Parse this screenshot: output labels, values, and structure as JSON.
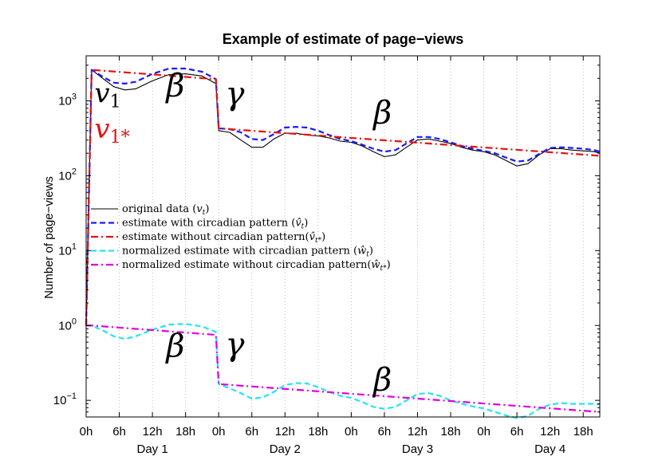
{
  "chart_data": {
    "type": "line",
    "title": "Example of estimate of page−views",
    "ylabel": "Number of page−views",
    "xlabel": "",
    "yscale": "log",
    "ylim": [
      0.06,
      4000
    ],
    "xlim": [
      0,
      93
    ],
    "x_ticks": [
      {
        "x": 0,
        "label": "0h"
      },
      {
        "x": 6,
        "label": "6h"
      },
      {
        "x": 12,
        "label": "12h"
      },
      {
        "x": 18,
        "label": "18h"
      },
      {
        "x": 24,
        "label": "0h"
      },
      {
        "x": 30,
        "label": "6h"
      },
      {
        "x": 36,
        "label": "12h"
      },
      {
        "x": 42,
        "label": "18h"
      },
      {
        "x": 48,
        "label": "0h"
      },
      {
        "x": 54,
        "label": "6h"
      },
      {
        "x": 60,
        "label": "12h"
      },
      {
        "x": 66,
        "label": "18h"
      },
      {
        "x": 72,
        "label": "0h"
      },
      {
        "x": 78,
        "label": "6h"
      },
      {
        "x": 84,
        "label": "12h"
      },
      {
        "x": 90,
        "label": "18h"
      }
    ],
    "day_labels": [
      {
        "x": 12,
        "label": "Day 1"
      },
      {
        "x": 36,
        "label": "Day 2"
      },
      {
        "x": 60,
        "label": "Day 3"
      },
      {
        "x": 84,
        "label": "Day 4"
      }
    ],
    "y_ticks": [
      {
        "exp": 3,
        "base": "10",
        "sup": "3"
      },
      {
        "exp": 2,
        "base": "10",
        "sup": "2"
      },
      {
        "exp": 1,
        "base": "10",
        "sup": "1"
      },
      {
        "exp": 0,
        "base": "10",
        "sup": "0"
      },
      {
        "exp": -1,
        "base": "10",
        "sup": "−1"
      }
    ],
    "grid": "vertical dotted",
    "legend_position": "center-left",
    "series": [
      {
        "name": "original data (v_t)",
        "legend": "original data (",
        "legend_sym": "v",
        "legend_sub": "t",
        "legend_end": ")",
        "color": "#000000",
        "style": "solid",
        "x": [
          0,
          1,
          3,
          5,
          7,
          9,
          12,
          15,
          18,
          21,
          23.5,
          24,
          26,
          28,
          30,
          32,
          34,
          36,
          38,
          40,
          42,
          44,
          46,
          48,
          50,
          52,
          54,
          56,
          58,
          60,
          62,
          64,
          66,
          68,
          70,
          72,
          74,
          76,
          78,
          80,
          82,
          84,
          86,
          88,
          90,
          92,
          93
        ],
        "y": [
          1,
          2600,
          2000,
          1550,
          1400,
          1450,
          1850,
          2250,
          2300,
          2150,
          1700,
          400,
          380,
          300,
          240,
          240,
          310,
          370,
          370,
          350,
          340,
          320,
          290,
          280,
          250,
          210,
          180,
          190,
          240,
          300,
          310,
          290,
          270,
          240,
          220,
          210,
          190,
          160,
          135,
          145,
          190,
          230,
          230,
          220,
          215,
          210,
          200
        ]
      },
      {
        "name": "estimate with circadian pattern (v̂_t)",
        "legend": "estimate with circadian pattern (",
        "legend_sym": "v̂",
        "legend_sub": "t",
        "legend_end": ")",
        "color": "#1a1aff",
        "style": "dashed",
        "x": [
          0,
          1,
          3,
          5,
          7,
          9,
          12,
          15,
          18,
          21,
          23.5,
          24,
          26,
          28,
          30,
          32,
          34,
          36,
          38,
          40,
          42,
          44,
          46,
          48,
          50,
          52,
          54,
          56,
          58,
          60,
          62,
          64,
          66,
          68,
          70,
          72,
          74,
          76,
          78,
          80,
          82,
          84,
          86,
          88,
          90,
          92,
          93
        ],
        "y": [
          1,
          2600,
          2100,
          1750,
          1700,
          1800,
          2300,
          2700,
          2700,
          2450,
          1950,
          430,
          420,
          380,
          310,
          300,
          360,
          440,
          450,
          440,
          400,
          350,
          310,
          290,
          260,
          230,
          210,
          220,
          270,
          330,
          330,
          310,
          280,
          250,
          230,
          215,
          200,
          175,
          155,
          160,
          195,
          235,
          240,
          235,
          230,
          220,
          210
        ]
      },
      {
        "name": "estimate without circadian pattern(v̂_t*)",
        "legend": "estimate without circadian pattern(",
        "legend_sym": "v̂",
        "legend_sub": "t*",
        "legend_end": ")",
        "color": "#e8100e",
        "style": "dashdot",
        "x": [
          0,
          1,
          23.5,
          24,
          93
        ],
        "y": [
          1,
          2600,
          1950,
          430,
          185
        ]
      },
      {
        "name": "normalized estimate with circadian pattern (ŵ_t)",
        "legend": "normalized estimate with circadian pattern (",
        "legend_sym": "ŵ",
        "legend_sub": "t",
        "legend_end": ")",
        "color": "#22e5f5",
        "style": "dashed",
        "x": [
          0,
          1,
          3,
          5,
          7,
          9,
          12,
          15,
          18,
          21,
          23.5,
          24,
          26,
          28,
          30,
          32,
          34,
          36,
          38,
          40,
          42,
          44,
          46,
          48,
          50,
          52,
          54,
          56,
          58,
          60,
          62,
          64,
          66,
          68,
          70,
          72,
          74,
          76,
          78,
          80,
          82,
          84,
          86,
          88,
          90,
          92,
          93
        ],
        "y": [
          1,
          1,
          0.86,
          0.72,
          0.66,
          0.72,
          0.88,
          1.03,
          1.05,
          0.97,
          0.82,
          0.165,
          0.145,
          0.125,
          0.105,
          0.11,
          0.13,
          0.16,
          0.17,
          0.168,
          0.15,
          0.13,
          0.115,
          0.108,
          0.095,
          0.082,
          0.077,
          0.082,
          0.1,
          0.122,
          0.125,
          0.115,
          0.1,
          0.09,
          0.083,
          0.078,
          0.07,
          0.063,
          0.058,
          0.062,
          0.077,
          0.088,
          0.092,
          0.09,
          0.09,
          0.09,
          0.088
        ]
      },
      {
        "name": "normalized estimate without circadian pattern(ŵ_t*)",
        "legend": "normalized estimate without circadian pattern(",
        "legend_sym": "ŵ",
        "legend_sub": "t*",
        "legend_end": ")",
        "color": "#e000e0",
        "style": "dashdot",
        "x": [
          0,
          1,
          23.5,
          24,
          93
        ],
        "y": [
          1,
          1,
          0.75,
          0.165,
          0.07
        ]
      }
    ],
    "annotations": [
      {
        "text": "v",
        "sub": "1",
        "x": 1.5,
        "y": 950,
        "color": "#000000",
        "size": 34
      },
      {
        "text": "v",
        "sub": "1*",
        "x": 1.5,
        "y": 320,
        "color": "#e8100e",
        "size": 34
      },
      {
        "text": "β",
        "x": 14.5,
        "y": 1150,
        "color": "#000000",
        "size": 40
      },
      {
        "text": "γ",
        "x": 25.2,
        "y": 900,
        "color": "#000000",
        "size": 40
      },
      {
        "text": "β",
        "x": 52,
        "y": 500,
        "color": "#000000",
        "size": 40
      },
      {
        "text": "β",
        "x": 14.5,
        "y": 0.38,
        "color": "#000000",
        "size": 40
      },
      {
        "text": "γ",
        "x": 25.2,
        "y": 0.4,
        "color": "#000000",
        "size": 40
      },
      {
        "text": "β",
        "x": 52,
        "y": 0.135,
        "color": "#000000",
        "size": 40
      }
    ]
  }
}
